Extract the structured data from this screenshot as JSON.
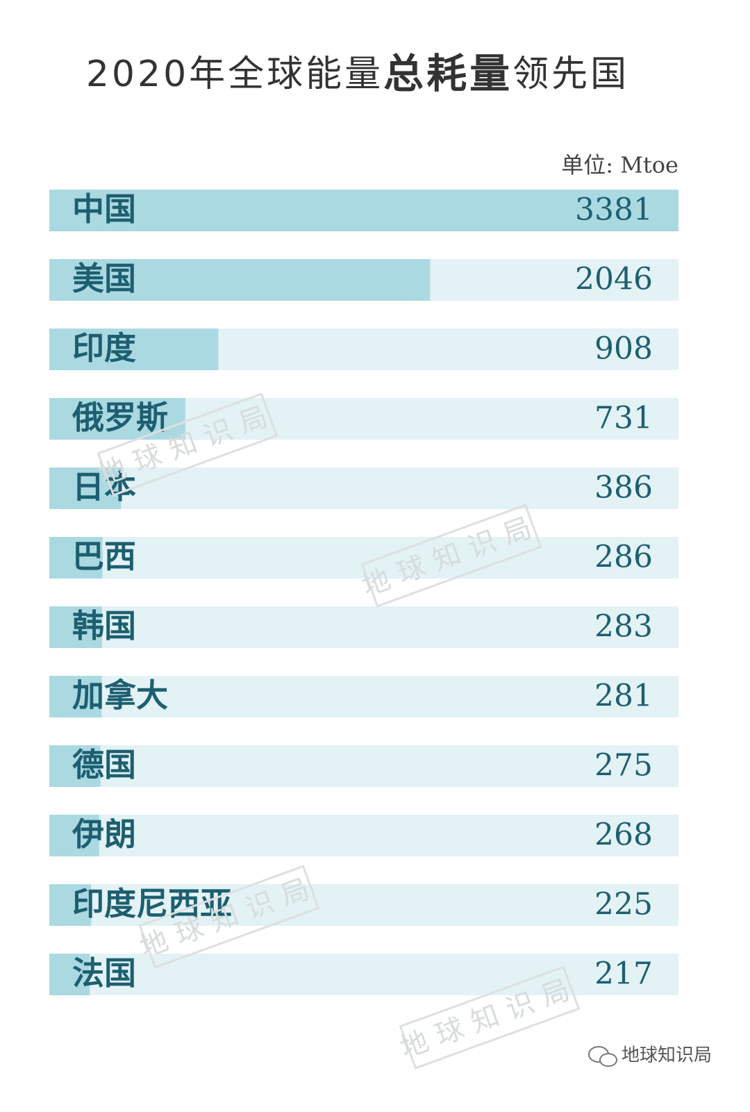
{
  "chart_data": {
    "type": "bar",
    "orientation": "horizontal",
    "title": [
      "2020年全球能量",
      "总耗量",
      "领先国"
    ],
    "unit": "单位: Mtoe",
    "categories": [
      "中国",
      "美国",
      "印度",
      "俄罗斯",
      "日本",
      "巴西",
      "韩国",
      "加拿大",
      "德国",
      "伊朗",
      "印度尼西亚",
      "法国"
    ],
    "values": [
      3381,
      2046,
      908,
      731,
      386,
      286,
      283,
      281,
      275,
      268,
      225,
      217
    ],
    "color": "#abd9e2",
    "track_color": "#e3f2f5",
    "xlim": [
      0,
      3381
    ],
    "watermark": "地球知识局",
    "footer": "地球知识局"
  }
}
